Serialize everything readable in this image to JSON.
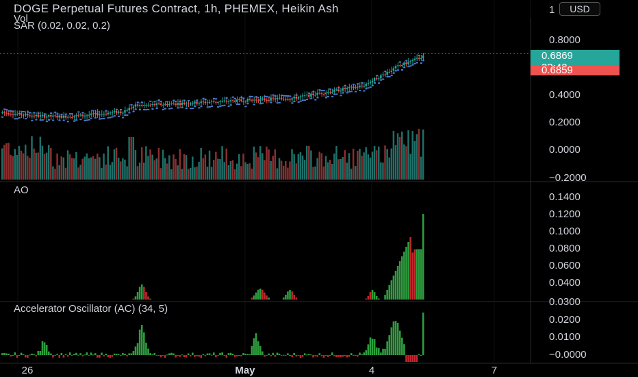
{
  "header": {
    "title": "DOGE Perpetual Futures Contract, 1h, PHEMEX, Heikin Ash",
    "vol_label": "Vol",
    "sar_label": "SAR (0.02, 0.02, 0.2)",
    "currency": "USD"
  },
  "price_axis": {
    "ticks": [
      "1",
      "0.8000",
      "0.6000",
      "0.4000",
      "0.2000",
      "0.0000",
      "−0.2000"
    ],
    "last_price": "0.6869",
    "countdown": "33:42",
    "prev_price": "0.6859"
  },
  "ao_pane": {
    "label": "AO",
    "ticks": [
      "0.1400",
      "0.1200",
      "0.1000",
      "0.0800",
      "0.0600",
      "0.0400",
      "0.0300"
    ]
  },
  "ac_pane": {
    "label": "Accelerator Oscillator (AC) (34, 5)",
    "ticks": [
      "0.0200",
      "0.0100",
      "−0.0000"
    ]
  },
  "time_axis": {
    "labels": [
      "26",
      "May",
      "4",
      "7"
    ]
  },
  "colors": {
    "up": "#26a69a",
    "down": "#ef5350",
    "sar": "#4a7bd0",
    "ao_up": "#2e9e3e",
    "ao_down": "#c0272d",
    "background": "#000000"
  },
  "chart_data": {
    "type": "candlestick",
    "price_range": [
      -0.2,
      1.0
    ],
    "price_last": 0.6869,
    "ao_range": [
      0.03,
      0.14
    ],
    "ac_range": [
      -0.005,
      0.025
    ]
  }
}
